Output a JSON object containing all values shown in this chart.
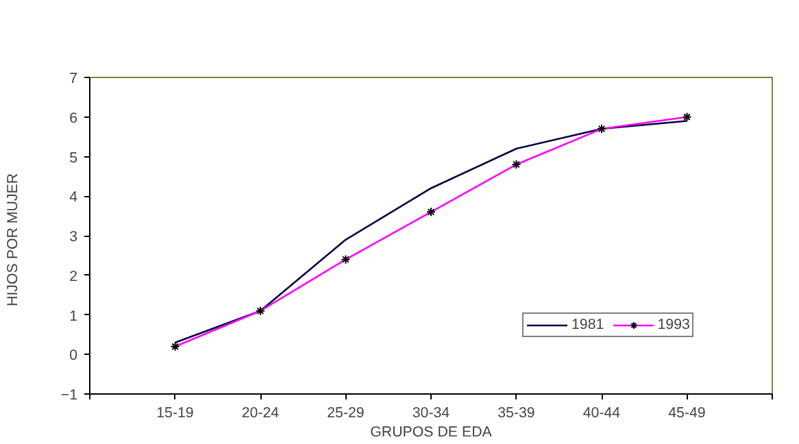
{
  "chart_data": {
    "type": "line",
    "xlabel": "GRUPOS DE EDA",
    "ylabel": "HIJOS  POR  MUJER",
    "categories": [
      null,
      "15-19",
      "20-24",
      "25-29",
      "30-34",
      "35-39",
      "40-44",
      "45-49",
      null
    ],
    "ylim": [
      -1,
      7
    ],
    "yticks": [
      -1,
      0,
      1,
      2,
      3,
      4,
      5,
      6,
      7
    ],
    "grid": false,
    "legend": "bottom right",
    "series": [
      {
        "name": "1981",
        "color": "#000040",
        "marker": "none",
        "values": [
          null,
          0.3,
          1.1,
          2.9,
          4.2,
          5.2,
          5.7,
          5.9,
          null
        ]
      },
      {
        "name": "1993",
        "color": "#ff00ff",
        "marker": "cross",
        "values": [
          null,
          0.2,
          1.1,
          2.4,
          3.6,
          4.8,
          5.7,
          6.0,
          null
        ]
      }
    ]
  }
}
